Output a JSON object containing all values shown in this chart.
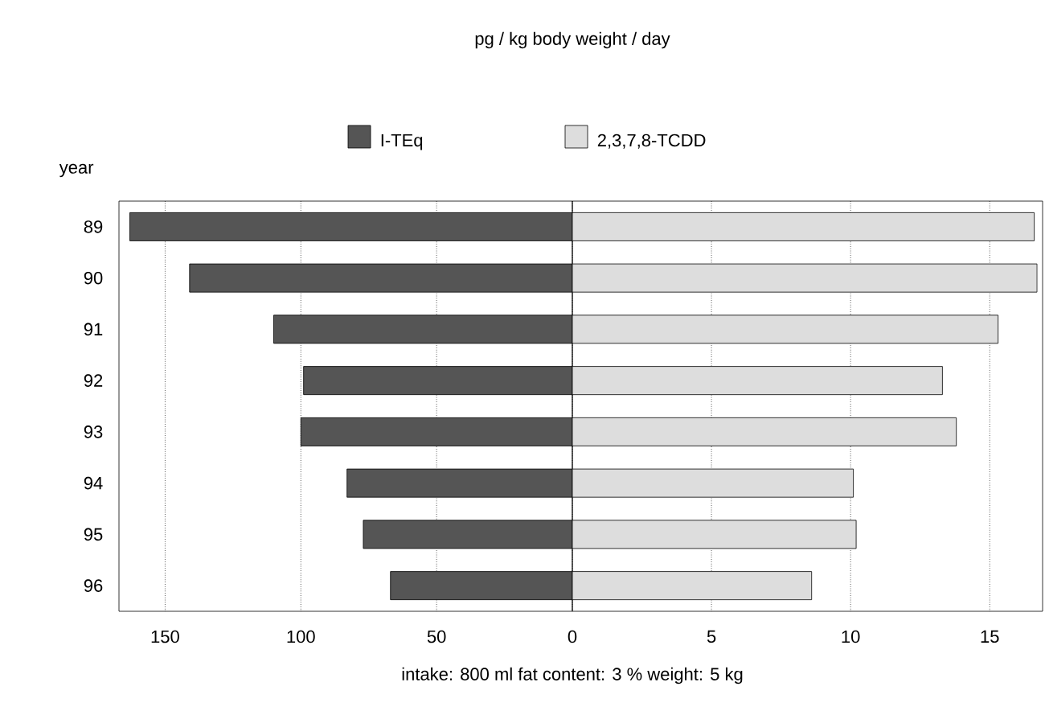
{
  "chart_data": [
    {
      "type": "bar",
      "orientation": "horizontal",
      "title": "pg / kg body weight / day",
      "ylabel": "year",
      "categories": [
        "89",
        "90",
        "91",
        "92",
        "93",
        "94",
        "95",
        "96"
      ],
      "series": [
        {
          "name": "I-TEq",
          "color": "#555555",
          "values": [
            163,
            141,
            110,
            99,
            100,
            83,
            77,
            67
          ]
        }
      ],
      "xlim": [
        167,
        0
      ],
      "xticks": [
        150,
        100,
        50,
        0
      ],
      "grid": "x",
      "legend": "top",
      "annotations": [
        "intake: 800 ml    fat content: 3 %    weight: 5 kg"
      ]
    },
    {
      "type": "bar",
      "orientation": "horizontal",
      "categories": [
        "89",
        "90",
        "91",
        "92",
        "93",
        "94",
        "95",
        "96"
      ],
      "series": [
        {
          "name": "2,3,7,8-TCDD",
          "color": "#dddddd",
          "values": [
            16.6,
            16.7,
            15.3,
            13.3,
            13.8,
            10.1,
            10.2,
            8.6
          ]
        }
      ],
      "xlim": [
        0,
        16.9
      ],
      "xticks": [
        5,
        10,
        15
      ],
      "grid": "x",
      "legend": "top",
      "tick_labels": "x"
    }
  ]
}
